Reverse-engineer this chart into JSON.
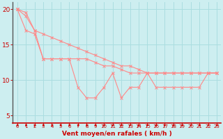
{
  "xlabel": "Vent moyen/en rafales ( km/h )",
  "x": [
    0,
    1,
    2,
    3,
    4,
    5,
    6,
    7,
    8,
    9,
    10,
    11,
    12,
    13,
    14,
    15,
    16,
    17,
    18,
    19,
    20,
    21,
    22,
    23
  ],
  "line1": [
    20.0,
    19.0,
    17.0,
    13.0,
    13.0,
    13.0,
    13.0,
    9.0,
    7.5,
    7.5,
    9.0,
    11.0,
    7.5,
    9.0,
    9.0,
    11.0,
    9.0,
    9.0,
    9.0,
    9.0,
    9.0,
    9.0,
    11.0,
    11.0
  ],
  "line2": [
    20.0,
    17.0,
    16.5,
    13.0,
    13.0,
    13.0,
    13.0,
    13.0,
    13.0,
    12.5,
    12.0,
    12.0,
    11.5,
    11.0,
    11.0,
    11.0,
    11.0,
    11.0,
    11.0,
    11.0,
    11.0,
    11.0,
    11.0,
    11.0
  ],
  "line3": [
    20.0,
    19.5,
    17.0,
    16.5,
    16.0,
    15.5,
    15.0,
    14.5,
    14.0,
    13.5,
    13.0,
    12.5,
    12.0,
    12.0,
    11.5,
    11.0,
    11.0,
    11.0,
    11.0,
    11.0,
    11.0,
    11.0,
    11.0,
    11.0
  ],
  "bg_color": "#cdeef0",
  "line_color": "#ff8888",
  "grid_color": "#aadde0",
  "axis_color": "#cc0000",
  "tick_color": "#cc0000",
  "ylim": [
    4.0,
    21.0
  ],
  "yticks": [
    5,
    10,
    15,
    20
  ],
  "xlim": [
    -0.5,
    23.5
  ]
}
